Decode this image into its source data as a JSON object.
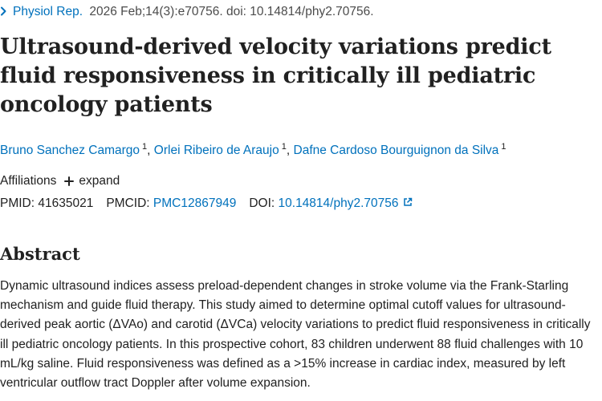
{
  "citation": {
    "journal": "Physiol Rep.",
    "details": "2026 Feb;14(3):e70756. doi: 10.14814/phy2.70756."
  },
  "article": {
    "title": "Ultrasound-derived velocity variations predict fluid responsiveness in critically ill pediatric oncology patients"
  },
  "authors": [
    {
      "name": "Bruno Sanchez Camargo",
      "affiliation": "1",
      "separator": ","
    },
    {
      "name": "Orlei Ribeiro de Araujo",
      "affiliation": "1",
      "separator": ","
    },
    {
      "name": "Dafne Cardoso Bourguignon da Silva",
      "affiliation": "1",
      "separator": ""
    }
  ],
  "affiliations": {
    "label": "Affiliations",
    "expand_label": "expand"
  },
  "identifiers": {
    "pmid_label": "PMID:",
    "pmid": "41635021",
    "pmcid_label": "PMCID:",
    "pmcid": "PMC12867949",
    "doi_label": "DOI:",
    "doi": "10.14814/phy2.70756"
  },
  "abstract": {
    "heading": "Abstract",
    "text": "Dynamic ultrasound indices assess preload-dependent changes in stroke volume via the Frank-Starling mechanism and guide fluid therapy. This study aimed to determine optimal cutoff values for ultrasound-derived peak aortic (ΔVAo) and carotid (ΔVCa) velocity variations to predict fluid responsiveness in critically ill pediatric oncology patients. In this prospective cohort, 83 children underwent 88 fluid challenges with 10 mL/kg saline. Fluid responsiveness was defined as a >15% increase in cardiac index, measured by left ventricular outflow tract Doppler after volume expansion."
  },
  "colors": {
    "link": "#0071bc",
    "text": "#212121",
    "muted": "#4b4b4b"
  }
}
